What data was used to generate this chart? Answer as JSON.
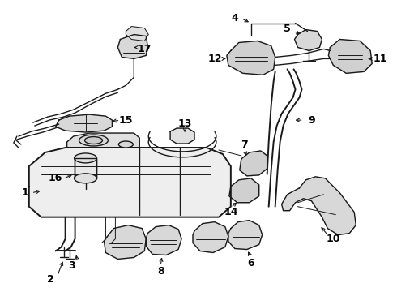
{
  "bg_color": "#ffffff",
  "line_color": "#1a1a1a",
  "label_color": "#000000",
  "figsize": [
    4.9,
    3.6
  ],
  "dpi": 100
}
